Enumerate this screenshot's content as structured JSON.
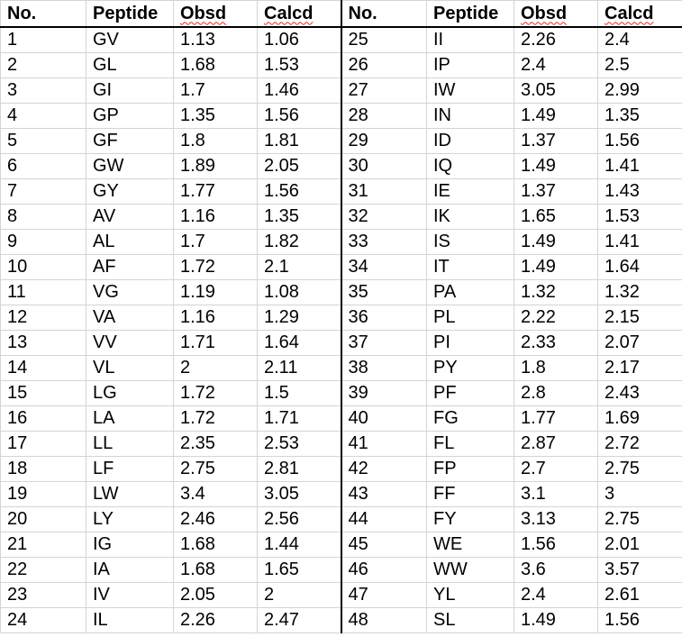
{
  "headers": {
    "no": "No.",
    "peptide": "Peptide",
    "obsd": "Obsd",
    "calcd": "Calcd"
  },
  "rows": [
    {
      "left": {
        "no": "1",
        "peptide": "GV",
        "obsd": "1.13",
        "calcd": "1.06"
      },
      "right": {
        "no": "25",
        "peptide": "II",
        "obsd": "2.26",
        "calcd": "2.4"
      }
    },
    {
      "left": {
        "no": "2",
        "peptide": "GL",
        "obsd": "1.68",
        "calcd": "1.53"
      },
      "right": {
        "no": "26",
        "peptide": "IP",
        "obsd": "2.4",
        "calcd": "2.5"
      }
    },
    {
      "left": {
        "no": "3",
        "peptide": "GI",
        "obsd": "1.7",
        "calcd": "1.46"
      },
      "right": {
        "no": "27",
        "peptide": "IW",
        "obsd": "3.05",
        "calcd": "2.99"
      }
    },
    {
      "left": {
        "no": "4",
        "peptide": "GP",
        "obsd": "1.35",
        "calcd": "1.56"
      },
      "right": {
        "no": "28",
        "peptide": "IN",
        "obsd": "1.49",
        "calcd": "1.35"
      }
    },
    {
      "left": {
        "no": "5",
        "peptide": "GF",
        "obsd": "1.8",
        "calcd": "1.81"
      },
      "right": {
        "no": "29",
        "peptide": "ID",
        "obsd": "1.37",
        "calcd": "1.56"
      }
    },
    {
      "left": {
        "no": "6",
        "peptide": "GW",
        "obsd": "1.89",
        "calcd": "2.05"
      },
      "right": {
        "no": "30",
        "peptide": "IQ",
        "obsd": "1.49",
        "calcd": "1.41"
      }
    },
    {
      "left": {
        "no": "7",
        "peptide": "GY",
        "obsd": "1.77",
        "calcd": "1.56"
      },
      "right": {
        "no": "31",
        "peptide": "IE",
        "obsd": "1.37",
        "calcd": "1.43"
      }
    },
    {
      "left": {
        "no": "8",
        "peptide": "AV",
        "obsd": "1.16",
        "calcd": "1.35"
      },
      "right": {
        "no": "32",
        "peptide": "IK",
        "obsd": "1.65",
        "calcd": "1.53"
      }
    },
    {
      "left": {
        "no": "9",
        "peptide": "AL",
        "obsd": "1.7",
        "calcd": "1.82"
      },
      "right": {
        "no": "33",
        "peptide": "IS",
        "obsd": "1.49",
        "calcd": "1.41"
      }
    },
    {
      "left": {
        "no": "10",
        "peptide": "AF",
        "obsd": "1.72",
        "calcd": "2.1"
      },
      "right": {
        "no": "34",
        "peptide": "IT",
        "obsd": "1.49",
        "calcd": "1.64"
      }
    },
    {
      "left": {
        "no": "11",
        "peptide": "VG",
        "obsd": "1.19",
        "calcd": "1.08"
      },
      "right": {
        "no": "35",
        "peptide": "PA",
        "obsd": "1.32",
        "calcd": "1.32"
      }
    },
    {
      "left": {
        "no": "12",
        "peptide": "VA",
        "obsd": "1.16",
        "calcd": "1.29"
      },
      "right": {
        "no": "36",
        "peptide": "PL",
        "obsd": "2.22",
        "calcd": "2.15"
      }
    },
    {
      "left": {
        "no": "13",
        "peptide": "VV",
        "obsd": "1.71",
        "calcd": "1.64"
      },
      "right": {
        "no": "37",
        "peptide": "PI",
        "obsd": "2.33",
        "calcd": "2.07"
      }
    },
    {
      "left": {
        "no": "14",
        "peptide": "VL",
        "obsd": "2",
        "calcd": "2.11"
      },
      "right": {
        "no": "38",
        "peptide": "PY",
        "obsd": "1.8",
        "calcd": "2.17"
      }
    },
    {
      "left": {
        "no": "15",
        "peptide": "LG",
        "obsd": "1.72",
        "calcd": "1.5"
      },
      "right": {
        "no": "39",
        "peptide": "PF",
        "obsd": "2.8",
        "calcd": "2.43"
      }
    },
    {
      "left": {
        "no": "16",
        "peptide": "LA",
        "obsd": "1.72",
        "calcd": "1.71"
      },
      "right": {
        "no": "40",
        "peptide": "FG",
        "obsd": "1.77",
        "calcd": "1.69"
      }
    },
    {
      "left": {
        "no": "17",
        "peptide": "LL",
        "obsd": "2.35",
        "calcd": "2.53"
      },
      "right": {
        "no": "41",
        "peptide": "FL",
        "obsd": "2.87",
        "calcd": "2.72"
      }
    },
    {
      "left": {
        "no": "18",
        "peptide": "LF",
        "obsd": "2.75",
        "calcd": "2.81"
      },
      "right": {
        "no": "42",
        "peptide": "FP",
        "obsd": "2.7",
        "calcd": "2.75"
      }
    },
    {
      "left": {
        "no": "19",
        "peptide": "LW",
        "obsd": "3.4",
        "calcd": "3.05"
      },
      "right": {
        "no": "43",
        "peptide": "FF",
        "obsd": "3.1",
        "calcd": "3"
      }
    },
    {
      "left": {
        "no": "20",
        "peptide": "LY",
        "obsd": "2.46",
        "calcd": "2.56"
      },
      "right": {
        "no": "44",
        "peptide": "FY",
        "obsd": "3.13",
        "calcd": "2.75"
      }
    },
    {
      "left": {
        "no": "21",
        "peptide": "IG",
        "obsd": "1.68",
        "calcd": "1.44"
      },
      "right": {
        "no": "45",
        "peptide": "WE",
        "obsd": "1.56",
        "calcd": "2.01"
      }
    },
    {
      "left": {
        "no": "22",
        "peptide": "IA",
        "obsd": "1.68",
        "calcd": "1.65"
      },
      "right": {
        "no": "46",
        "peptide": "WW",
        "obsd": "3.6",
        "calcd": "3.57"
      }
    },
    {
      "left": {
        "no": "23",
        "peptide": "IV",
        "obsd": "2.05",
        "calcd": "2"
      },
      "right": {
        "no": "47",
        "peptide": "YL",
        "obsd": "2.4",
        "calcd": "2.61"
      }
    },
    {
      "left": {
        "no": "24",
        "peptide": "IL",
        "obsd": "2.26",
        "calcd": "2.47"
      },
      "right": {
        "no": "48",
        "peptide": "SL",
        "obsd": "1.49",
        "calcd": "1.56"
      }
    }
  ]
}
